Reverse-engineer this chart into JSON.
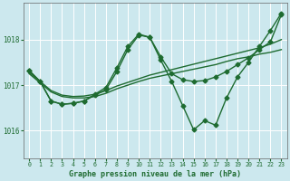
{
  "background_color": "#cce8ee",
  "grid_color": "#ffffff",
  "line_color": "#1e6b30",
  "text_color": "#1e6b30",
  "xlabel": "Graphe pression niveau de la mer (hPa)",
  "xlim": [
    -0.5,
    23.5
  ],
  "ylim": [
    1015.4,
    1018.8
  ],
  "yticks": [
    1016,
    1017,
    1018
  ],
  "xticks": [
    0,
    1,
    2,
    3,
    4,
    5,
    6,
    7,
    8,
    9,
    10,
    11,
    12,
    13,
    14,
    15,
    16,
    17,
    18,
    19,
    20,
    21,
    22,
    23
  ],
  "series": [
    {
      "x": [
        0,
        1,
        2,
        3,
        4,
        5,
        6,
        7,
        8,
        9,
        10,
        11,
        12,
        13,
        14,
        15,
        16,
        17,
        18,
        19,
        20,
        21,
        22,
        23
      ],
      "y": [
        1017.25,
        1017.05,
        1016.85,
        1016.75,
        1016.72,
        1016.72,
        1016.75,
        1016.82,
        1016.92,
        1017.0,
        1017.08,
        1017.15,
        1017.2,
        1017.25,
        1017.3,
        1017.35,
        1017.4,
        1017.45,
        1017.52,
        1017.58,
        1017.62,
        1017.68,
        1017.72,
        1017.78
      ],
      "lw": 1.0,
      "marker": null
    },
    {
      "x": [
        0,
        1,
        2,
        3,
        4,
        5,
        6,
        7,
        8,
        9,
        10,
        11,
        12,
        13,
        14,
        15,
        16,
        17,
        18,
        19,
        20,
        21,
        22,
        23
      ],
      "y": [
        1017.28,
        1017.08,
        1016.88,
        1016.78,
        1016.75,
        1016.76,
        1016.8,
        1016.88,
        1016.98,
        1017.06,
        1017.14,
        1017.22,
        1017.28,
        1017.34,
        1017.4,
        1017.46,
        1017.52,
        1017.58,
        1017.64,
        1017.7,
        1017.76,
        1017.82,
        1017.9,
        1018.0
      ],
      "lw": 1.0,
      "marker": null
    },
    {
      "x": [
        0,
        1,
        2,
        3,
        4,
        5,
        6,
        7,
        8,
        9,
        10,
        11,
        12,
        13,
        14,
        15,
        16,
        17,
        18,
        19,
        20,
        21,
        22,
        23
      ],
      "y": [
        1017.32,
        1017.08,
        1016.65,
        1016.58,
        1016.6,
        1016.65,
        1016.78,
        1016.9,
        1017.3,
        1017.78,
        1018.1,
        1018.05,
        1017.62,
        1017.25,
        1017.12,
        1017.08,
        1017.1,
        1017.18,
        1017.3,
        1017.45,
        1017.6,
        1017.78,
        1017.95,
        1018.55
      ],
      "lw": 1.0,
      "marker": "D"
    },
    {
      "x": [
        0,
        1,
        2,
        3,
        4,
        5,
        6,
        7,
        8,
        9,
        10,
        11,
        12,
        13,
        14,
        15,
        16,
        17,
        18,
        19,
        20,
        21,
        22,
        23
      ],
      "y": [
        1017.32,
        1017.08,
        1016.65,
        1016.58,
        1016.6,
        1016.65,
        1016.8,
        1016.95,
        1017.38,
        1017.85,
        1018.12,
        1018.05,
        1017.55,
        1017.08,
        1016.55,
        1016.02,
        1016.22,
        1016.12,
        1016.72,
        1017.18,
        1017.5,
        1017.85,
        1018.2,
        1018.58
      ],
      "lw": 1.0,
      "marker": "D"
    }
  ]
}
